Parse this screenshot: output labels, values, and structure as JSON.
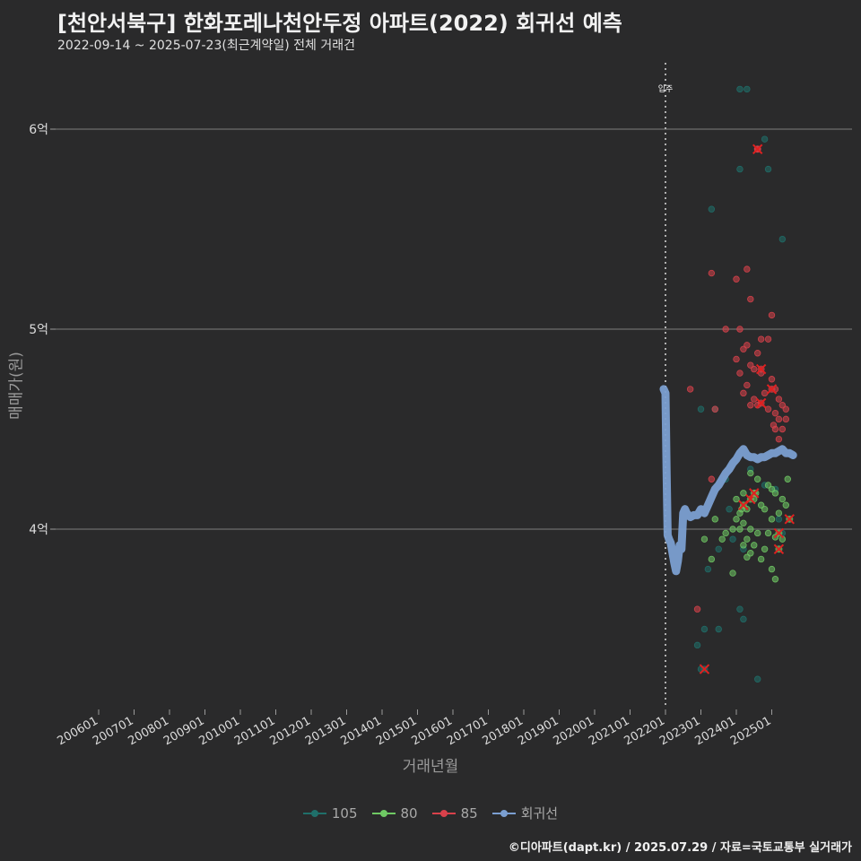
{
  "chart_data": {
    "type": "scatter",
    "title": "[천안서북구] 한화포레나천안두정 아파트(2022) 회귀선 예측",
    "subtitle": "2022-09-14 ~ 2025-07-23(최근계약일) 전체 거래건",
    "xlabel": "거래년월",
    "ylabel": "매매가(원)",
    "ylim": [
      3.1,
      6.35
    ],
    "y_ticks": [
      {
        "value": 4,
        "label": "4억"
      },
      {
        "value": 5,
        "label": "5억"
      },
      {
        "value": 6,
        "label": "6억"
      }
    ],
    "x_ticks": [
      "200601",
      "200701",
      "200801",
      "200901",
      "201001",
      "201101",
      "201201",
      "201301",
      "201401",
      "201501",
      "201601",
      "201701",
      "201801",
      "201901",
      "202001",
      "202101",
      "202201",
      "202301",
      "202401",
      "202501"
    ],
    "annotation": {
      "label": "입주",
      "x": 2022.0
    },
    "legend": [
      {
        "name": "105",
        "color": "#1f6f6a"
      },
      {
        "name": "80",
        "color": "#6fc964"
      },
      {
        "name": "85",
        "color": "#d9414b"
      },
      {
        "name": "회귀선",
        "color": "#7b9fd1"
      }
    ],
    "series": [
      {
        "name": "105",
        "color": "#1f6f6a",
        "points": [
          [
            2024.1,
            6.2
          ],
          [
            2024.3,
            6.2
          ],
          [
            2024.8,
            5.95
          ],
          [
            2024.9,
            5.8
          ],
          [
            2024.1,
            5.8
          ],
          [
            2023.3,
            5.6
          ],
          [
            2025.3,
            5.45
          ],
          [
            2023.4,
            4.6
          ],
          [
            2023.0,
            4.6
          ],
          [
            2023.7,
            4.25
          ],
          [
            2024.4,
            4.3
          ],
          [
            2024.8,
            4.22
          ],
          [
            2025.1,
            4.2
          ],
          [
            2023.8,
            4.1
          ],
          [
            2023.9,
            3.95
          ],
          [
            2024.2,
            3.9
          ],
          [
            2023.5,
            3.9
          ],
          [
            2023.2,
            3.8
          ],
          [
            2024.1,
            3.6
          ],
          [
            2024.2,
            3.55
          ],
          [
            2023.1,
            3.5
          ],
          [
            2023.5,
            3.5
          ],
          [
            2022.9,
            3.42
          ],
          [
            2023.0,
            3.3
          ],
          [
            2024.6,
            3.25
          ],
          [
            2025.2,
            4.05
          ],
          [
            2025.3,
            3.98
          ]
        ]
      },
      {
        "name": "80",
        "color": "#6fc964",
        "points": [
          [
            2024.4,
            4.28
          ],
          [
            2024.6,
            4.25
          ],
          [
            2024.9,
            4.22
          ],
          [
            2025.0,
            4.2
          ],
          [
            2025.1,
            4.18
          ],
          [
            2025.3,
            4.15
          ],
          [
            2025.4,
            4.12
          ],
          [
            2024.2,
            4.18
          ],
          [
            2024.0,
            4.15
          ],
          [
            2024.5,
            4.15
          ],
          [
            2024.7,
            4.12
          ],
          [
            2024.3,
            4.1
          ],
          [
            2024.1,
            4.08
          ],
          [
            2024.8,
            4.1
          ],
          [
            2025.0,
            4.05
          ],
          [
            2025.2,
            4.08
          ],
          [
            2024.0,
            4.05
          ],
          [
            2024.2,
            4.03
          ],
          [
            2023.9,
            4.0
          ],
          [
            2024.1,
            4.0
          ],
          [
            2024.4,
            4.0
          ],
          [
            2024.6,
            3.98
          ],
          [
            2024.9,
            3.98
          ],
          [
            2025.1,
            3.96
          ],
          [
            2025.3,
            3.95
          ],
          [
            2024.3,
            3.95
          ],
          [
            2024.2,
            3.92
          ],
          [
            2024.5,
            3.92
          ],
          [
            2024.8,
            3.9
          ],
          [
            2024.4,
            3.88
          ],
          [
            2024.3,
            3.86
          ],
          [
            2025.0,
            3.8
          ],
          [
            2025.1,
            3.75
          ],
          [
            2023.9,
            3.78
          ],
          [
            2023.4,
            4.05
          ],
          [
            2023.7,
            3.98
          ],
          [
            2023.6,
            3.95
          ],
          [
            2023.3,
            3.85
          ],
          [
            2023.1,
            3.95
          ],
          [
            2024.7,
            3.85
          ],
          [
            2024.15,
            4.1
          ],
          [
            2024.55,
            4.18
          ],
          [
            2025.45,
            4.25
          ]
        ]
      },
      {
        "name": "85",
        "color": "#d9414b",
        "points": [
          [
            2024.6,
            5.9
          ],
          [
            2023.3,
            5.28
          ],
          [
            2024.3,
            5.3
          ],
          [
            2024.0,
            5.25
          ],
          [
            2024.4,
            5.15
          ],
          [
            2025.0,
            5.07
          ],
          [
            2023.7,
            5.0
          ],
          [
            2024.1,
            5.0
          ],
          [
            2024.3,
            4.92
          ],
          [
            2024.7,
            4.95
          ],
          [
            2024.9,
            4.95
          ],
          [
            2024.2,
            4.9
          ],
          [
            2024.6,
            4.88
          ],
          [
            2024.0,
            4.85
          ],
          [
            2024.4,
            4.82
          ],
          [
            2024.5,
            4.8
          ],
          [
            2024.7,
            4.78
          ],
          [
            2024.1,
            4.78
          ],
          [
            2025.0,
            4.75
          ],
          [
            2024.3,
            4.72
          ],
          [
            2025.1,
            4.7
          ],
          [
            2024.2,
            4.68
          ],
          [
            2024.8,
            4.68
          ],
          [
            2025.2,
            4.65
          ],
          [
            2024.4,
            4.62
          ],
          [
            2024.6,
            4.62
          ],
          [
            2024.9,
            4.6
          ],
          [
            2025.1,
            4.58
          ],
          [
            2025.3,
            4.62
          ],
          [
            2025.4,
            4.6
          ],
          [
            2025.2,
            4.55
          ],
          [
            2025.4,
            4.55
          ],
          [
            2025.1,
            4.5
          ],
          [
            2025.3,
            4.5
          ],
          [
            2025.2,
            4.45
          ],
          [
            2022.7,
            4.7
          ],
          [
            2023.4,
            4.6
          ],
          [
            2024.5,
            4.65
          ],
          [
            2025.05,
            4.52
          ],
          [
            2022.9,
            3.6
          ],
          [
            2023.3,
            4.25
          ]
        ]
      }
    ],
    "crosses": [
      {
        "series": "85",
        "x": 2024.6,
        "y": 5.9
      },
      {
        "series": "85",
        "x": 2024.7,
        "y": 4.8
      },
      {
        "series": "85",
        "x": 2025.0,
        "y": 4.7
      },
      {
        "series": "85",
        "x": 2024.7,
        "y": 4.63
      },
      {
        "series": "80",
        "x": 2024.2,
        "y": 4.12
      },
      {
        "series": "80",
        "x": 2024.4,
        "y": 4.15
      },
      {
        "series": "80",
        "x": 2024.5,
        "y": 4.18
      },
      {
        "series": "80",
        "x": 2025.5,
        "y": 4.05
      },
      {
        "series": "80",
        "x": 2025.2,
        "y": 3.98
      },
      {
        "series": "80",
        "x": 2025.2,
        "y": 3.9
      },
      {
        "series": "105",
        "x": 2023.1,
        "y": 3.3
      }
    ],
    "regression_line": {
      "name": "회귀선",
      "points": [
        [
          2021.95,
          4.7
        ],
        [
          2022.0,
          4.68
        ],
        [
          2022.03,
          4.3
        ],
        [
          2022.06,
          3.97
        ],
        [
          2022.1,
          3.95
        ],
        [
          2022.15,
          3.93
        ],
        [
          2022.2,
          3.88
        ],
        [
          2022.25,
          3.83
        ],
        [
          2022.3,
          3.79
        ],
        [
          2022.35,
          3.84
        ],
        [
          2022.4,
          3.92
        ],
        [
          2022.45,
          3.9
        ],
        [
          2022.5,
          4.08
        ],
        [
          2022.55,
          4.1
        ],
        [
          2022.6,
          4.08
        ],
        [
          2022.7,
          4.06
        ],
        [
          2022.8,
          4.07
        ],
        [
          2022.9,
          4.07
        ],
        [
          2023.0,
          4.1
        ],
        [
          2023.1,
          4.08
        ],
        [
          2023.2,
          4.12
        ],
        [
          2023.3,
          4.16
        ],
        [
          2023.4,
          4.2
        ],
        [
          2023.5,
          4.22
        ],
        [
          2023.6,
          4.25
        ],
        [
          2023.7,
          4.28
        ],
        [
          2023.8,
          4.3
        ],
        [
          2023.9,
          4.33
        ],
        [
          2024.0,
          4.35
        ],
        [
          2024.1,
          4.38
        ],
        [
          2024.2,
          4.4
        ],
        [
          2024.3,
          4.37
        ],
        [
          2024.4,
          4.36
        ],
        [
          2024.5,
          4.36
        ],
        [
          2024.6,
          4.35
        ],
        [
          2024.7,
          4.36
        ],
        [
          2024.8,
          4.36
        ],
        [
          2024.9,
          4.37
        ],
        [
          2025.0,
          4.38
        ],
        [
          2025.1,
          4.38
        ],
        [
          2025.2,
          4.39
        ],
        [
          2025.3,
          4.4
        ],
        [
          2025.4,
          4.38
        ],
        [
          2025.5,
          4.38
        ],
        [
          2025.6,
          4.37
        ]
      ]
    }
  },
  "footer": "©디아파트(dapt.kr) / 2025.07.29 / 자료=국토교통부 실거래가"
}
